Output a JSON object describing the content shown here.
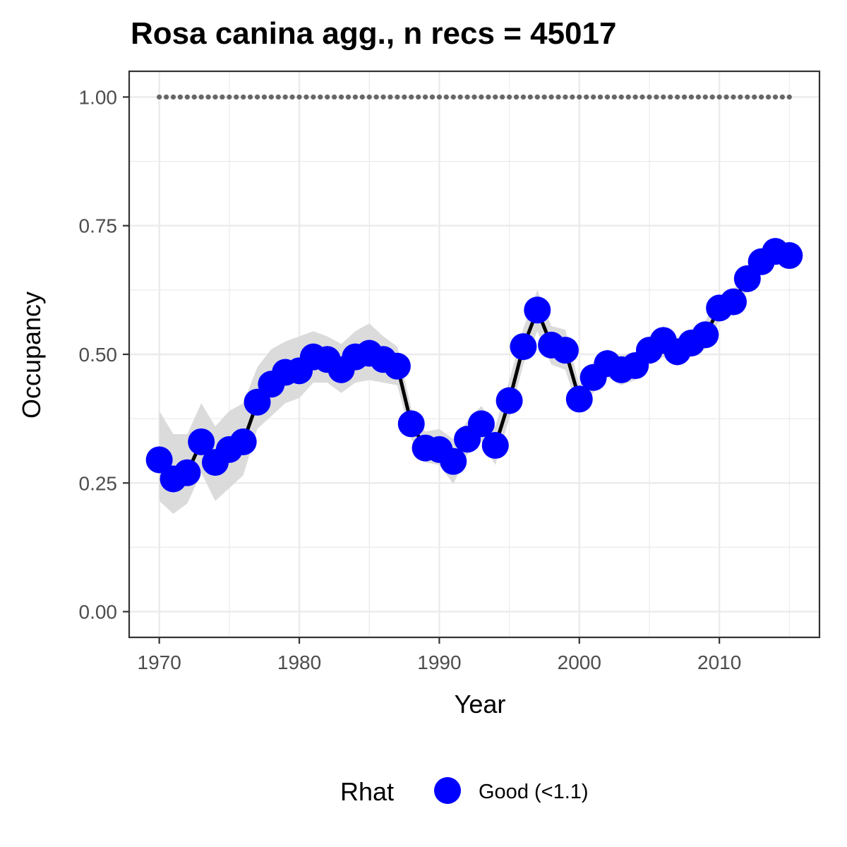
{
  "chart_data": {
    "type": "line",
    "title": "Rosa canina agg., n recs = 45017",
    "xlabel": "Year",
    "ylabel": "Occupancy",
    "xlim": [
      1967.85,
      2017.15
    ],
    "ylim": [
      -0.05,
      1.05
    ],
    "x_ticks": [
      1970,
      1980,
      1990,
      2000,
      2010
    ],
    "x_tick_labels": [
      "1970",
      "1980",
      "1990",
      "2000",
      "2010"
    ],
    "y_ticks": [
      0,
      0.25,
      0.5,
      0.75,
      1.0
    ],
    "y_tick_labels": [
      "0.00",
      "0.25",
      "0.50",
      "0.75",
      "1.00"
    ],
    "grid": true,
    "legend": {
      "position": "bottom",
      "title": "Rhat",
      "entries": [
        {
          "label": "Good (<1.1)",
          "color": "#0000ff"
        }
      ]
    },
    "colors": {
      "points": "#0000ff",
      "line": "#000000",
      "ribbon": "#d9d9d9",
      "reference": "#666666",
      "grid": "#ebebeb",
      "border": "#333333"
    },
    "x": [
      1970,
      1971,
      1972,
      1973,
      1974,
      1975,
      1976,
      1977,
      1978,
      1979,
      1980,
      1981,
      1982,
      1983,
      1984,
      1985,
      1986,
      1987,
      1988,
      1989,
      1990,
      1991,
      1992,
      1993,
      1994,
      1995,
      1996,
      1997,
      1998,
      1999,
      2000,
      2001,
      2002,
      2003,
      2004,
      2005,
      2006,
      2007,
      2008,
      2009,
      2010,
      2011,
      2012,
      2013,
      2014,
      2015
    ],
    "series": [
      {
        "values": [
          0.295,
          0.258,
          0.27,
          0.33,
          0.29,
          0.315,
          0.33,
          0.407,
          0.442,
          0.465,
          0.468,
          0.495,
          0.49,
          0.47,
          0.495,
          0.502,
          0.49,
          0.477,
          0.365,
          0.318,
          0.315,
          0.292,
          0.335,
          0.365,
          0.323,
          0.41,
          0.515,
          0.586,
          0.518,
          0.508,
          0.413,
          0.455,
          0.482,
          0.47,
          0.478,
          0.508,
          0.527,
          0.505,
          0.522,
          0.538,
          0.59,
          0.602,
          0.647,
          0.68,
          0.7,
          0.692
        ],
        "lower": [
          0.215,
          0.19,
          0.21,
          0.27,
          0.215,
          0.24,
          0.265,
          0.355,
          0.38,
          0.405,
          0.415,
          0.445,
          0.445,
          0.425,
          0.445,
          0.45,
          0.445,
          0.44,
          0.335,
          0.29,
          0.285,
          0.248,
          0.305,
          0.33,
          0.285,
          0.375,
          0.48,
          0.545,
          0.48,
          0.47,
          0.385,
          0.425,
          0.455,
          0.44,
          0.45,
          0.48,
          0.495,
          0.478,
          0.495,
          0.51,
          0.565,
          0.58,
          0.625,
          0.66,
          0.682,
          0.676
        ],
        "upper": [
          0.39,
          0.345,
          0.345,
          0.405,
          0.36,
          0.39,
          0.405,
          0.475,
          0.51,
          0.525,
          0.535,
          0.545,
          0.535,
          0.52,
          0.545,
          0.56,
          0.535,
          0.515,
          0.395,
          0.35,
          0.355,
          0.335,
          0.37,
          0.4,
          0.36,
          0.45,
          0.55,
          0.625,
          0.555,
          0.548,
          0.44,
          0.485,
          0.51,
          0.498,
          0.505,
          0.535,
          0.555,
          0.532,
          0.548,
          0.565,
          0.615,
          0.625,
          0.668,
          0.7,
          0.718,
          0.708
        ]
      }
    ],
    "reference_line": {
      "y": 1.0,
      "style": "dotted"
    }
  }
}
